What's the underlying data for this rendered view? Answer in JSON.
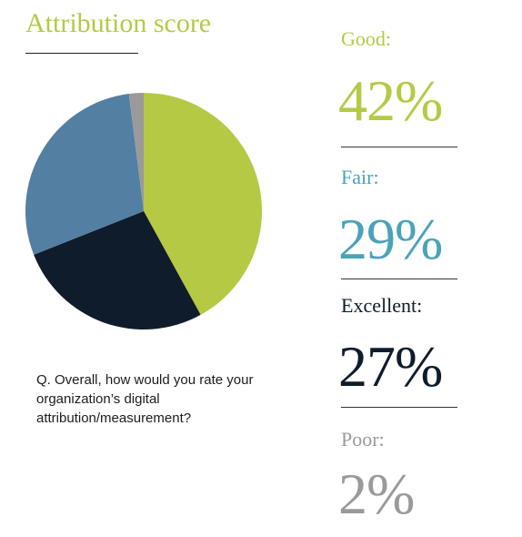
{
  "colors": {
    "good": "#b6c944",
    "fair": "#4aa3b7",
    "excellent": "#0f1c2b",
    "poor": "#9a9a9a",
    "pie_good": "#b6c944",
    "pie_excellent": "#0f1c2b",
    "pie_fair": "#537fa3",
    "pie_poor": "#9a9a9a"
  },
  "chart_data": {
    "type": "pie",
    "title": "Attribution score",
    "question": "Q. Overall, how would you rate your organization’s digital attribution/measurement?",
    "slices": [
      {
        "label": "Good:",
        "value": 42,
        "display": "42%",
        "color": "#b6c944"
      },
      {
        "label": "Excellent:",
        "value": 27,
        "display": "27%",
        "color": "#0f1c2b"
      },
      {
        "label": "Fair:",
        "value": 29,
        "display": "29%",
        "color": "#537fa3"
      },
      {
        "label": "Poor:",
        "value": 2,
        "display": "2%",
        "color": "#9a9a9a"
      }
    ]
  },
  "stats": {
    "good": {
      "label": "Good:",
      "value": "42%"
    },
    "fair": {
      "label": "Fair:",
      "value": "29%"
    },
    "excellent": {
      "label": "Excellent:",
      "value": "27%"
    },
    "poor": {
      "label": "Poor:",
      "value": "2%"
    }
  }
}
